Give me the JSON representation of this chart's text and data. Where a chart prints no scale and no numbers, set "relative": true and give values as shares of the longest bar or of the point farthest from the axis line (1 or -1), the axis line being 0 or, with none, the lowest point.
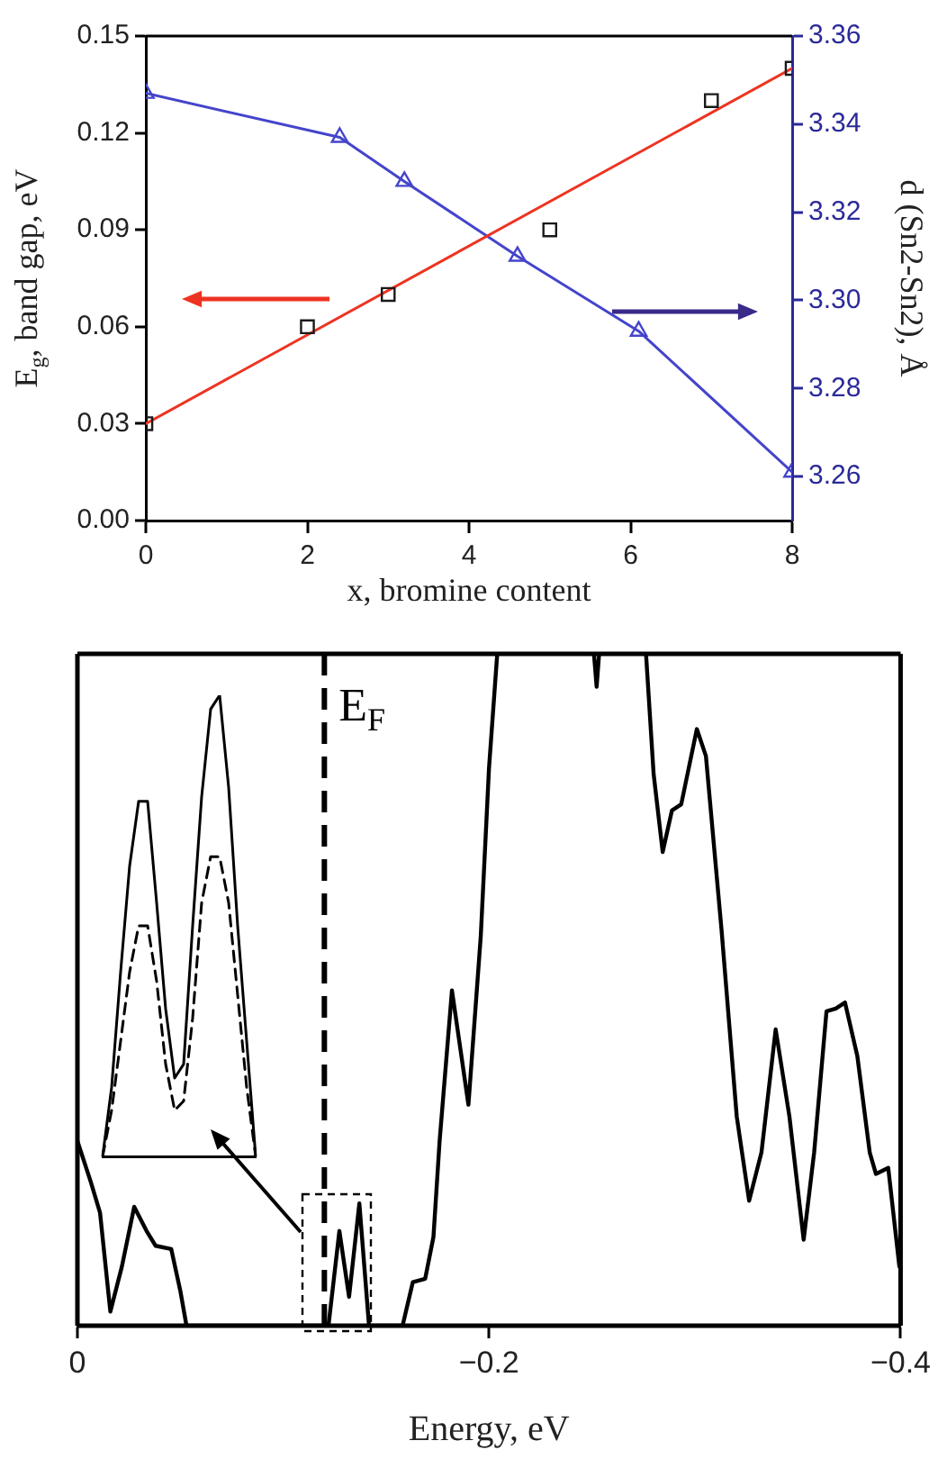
{
  "chart_data": [
    {
      "type": "line",
      "xlabel": "x, bromine content",
      "ylabel": "E$_{g}$, band gap, eV",
      "y2label": "d (Sn2-Sn2), Å",
      "xlim": [
        0,
        8
      ],
      "xticks": [
        0,
        2,
        4,
        6,
        8
      ],
      "ylim": [
        0,
        0.15
      ],
      "yticks": [
        {
          "value": 0,
          "label": "0.00"
        },
        0.03,
        0.06,
        0.09,
        0.12,
        0.15
      ],
      "y2lim": [
        3.25,
        3.36
      ],
      "y2ticks": [
        3.26,
        3.28,
        {
          "value": 3.3,
          "label": "3.30"
        },
        3.32,
        3.34,
        3.36
      ],
      "grid": false,
      "legend": false,
      "series": [
        {
          "type": "scatter",
          "marker": "square",
          "color": "#1a1a1a",
          "x": [
            0,
            2,
            3,
            5,
            7,
            8
          ],
          "values": [
            0.03,
            0.06,
            0.07,
            0.09,
            0.13,
            0.14
          ]
        },
        {
          "type": "line",
          "marker": "none",
          "color": "#ee3322",
          "x": [
            0,
            8
          ],
          "values": [
            0.03,
            0.14
          ]
        },
        {
          "type": "line",
          "marker": "triangle",
          "color": "#4444cc",
          "axis": "y2",
          "x": [
            0,
            2.4,
            3.2,
            4.6,
            6.1,
            8
          ],
          "values": [
            3.347,
            3.337,
            3.327,
            3.31,
            3.293,
            3.261
          ]
        }
      ]
    },
    {
      "type": "line",
      "relative": true,
      "xlabel": "Energy, eV",
      "xlim": [
        0,
        -0.4
      ],
      "xticks": [
        0,
        {
          "value": -0.2,
          "label": "−0.2"
        },
        {
          "value": -0.4,
          "label": "−0.4"
        }
      ],
      "grid": false,
      "legend": false,
      "ref_lines": [
        {
          "axis": "x",
          "value": -0.12,
          "label": "E$_{F}$",
          "line_style": "dashed",
          "color": "#000000"
        }
      ],
      "series": [
        {
          "color": "#000000",
          "x": [
            0,
            -0.0066,
            -0.011,
            -0.016,
            -0.0216,
            -0.0276,
            -0.0336,
            -0.038,
            -0.0456,
            -0.05,
            -0.053,
            -0.1125,
            -0.122,
            -0.1273,
            -0.132,
            -0.137,
            -0.1417,
            -0.158,
            -0.163,
            -0.169,
            -0.173,
            -0.176,
            -0.182,
            -0.19,
            -0.196,
            -0.2,
            -0.204,
            -0.23,
            -0.251,
            -0.2523,
            -0.2535,
            -0.265,
            -0.2763,
            -0.28,
            -0.2844,
            -0.2889,
            -0.2934,
            -0.301,
            -0.3054,
            -0.313,
            -0.3204,
            -0.3264,
            -0.3324,
            -0.3393,
            -0.346,
            -0.3529,
            -0.358,
            -0.364,
            -0.3685,
            -0.373,
            -0.379,
            -0.385,
            -0.388,
            -0.394,
            -0.3994
          ],
          "values": [
            0.275,
            0.213,
            0.168,
            0.021,
            0.088,
            0.177,
            0.141,
            0.119,
            0.114,
            0.052,
            0,
            0,
            0,
            0.141,
            0.043,
            0.182,
            0,
            0,
            0.065,
            0.07,
            0.132,
            0.275,
            0.499,
            0.329,
            0.58,
            0.83,
            1,
            null,
            1,
            0.951,
            1,
            null,
            1,
            0.821,
            0.705,
            0.767,
            0.776,
            0.888,
            0.848,
            0.589,
            0.311,
            0.186,
            0.258,
            0.441,
            0.311,
            0.128,
            0.258,
            0.468,
            0.472,
            0.481,
            0.401,
            0.258,
            0.226,
            0.235,
            0.088
          ]
        }
      ]
    },
    {
      "type": "line",
      "relative": true,
      "categories": [
        null,
        null,
        null,
        null,
        null,
        null,
        null,
        null,
        null,
        null,
        null,
        null,
        null,
        null,
        null,
        null,
        null,
        null
      ],
      "grid": false,
      "legend": false,
      "series": [
        {
          "color": "#000000",
          "line_style": "solid",
          "values": [
            0,
            0.15,
            0.4,
            0.63,
            0.77,
            0.77,
            0.55,
            0.32,
            0.17,
            0.2,
            0.5,
            0.78,
            0.97,
            1,
            0.8,
            0.5,
            0.25,
            0
          ]
        },
        {
          "color": "#000000",
          "line_style": "dashed",
          "values": [
            0,
            0.1,
            0.25,
            0.4,
            0.5,
            0.5,
            0.38,
            0.2,
            0.1,
            0.12,
            0.3,
            0.55,
            0.65,
            0.65,
            0.55,
            0.35,
            0.15,
            0
          ]
        }
      ]
    }
  ]
}
